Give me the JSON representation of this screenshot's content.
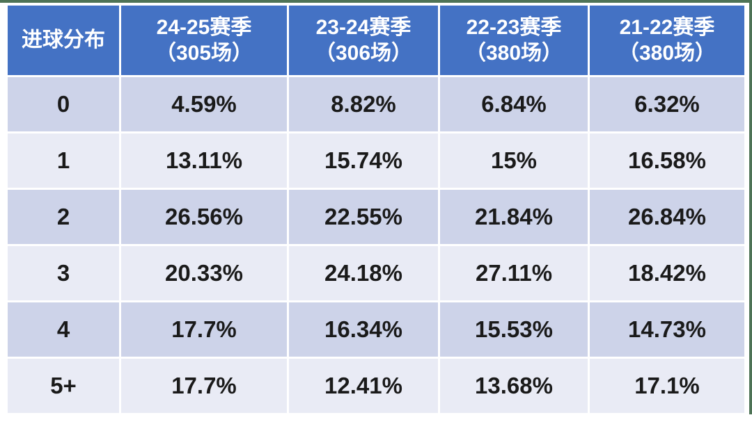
{
  "page": {
    "background": "#ffffff",
    "edge_strip_color": "#4e7356",
    "header_bg": "#4472c4",
    "header_text_color": "#ffffff",
    "row_bg_dark": "#cdd3e9",
    "row_bg_light": "#e9ebf5",
    "body_text_color": "#1a1a1a"
  },
  "table": {
    "columns": [
      {
        "label": "进球分布",
        "sublabel": ""
      },
      {
        "label": "24-25赛季",
        "sublabel": "（305场）"
      },
      {
        "label": "23-24赛季",
        "sublabel": "（306场）"
      },
      {
        "label": "22-23赛季",
        "sublabel": "（380场）"
      },
      {
        "label": "21-22赛季",
        "sublabel": "（380场）"
      }
    ],
    "rows": [
      {
        "goals": "0",
        "values": [
          "4.59%",
          "8.82%",
          "6.84%",
          "6.32%"
        ]
      },
      {
        "goals": "1",
        "values": [
          "13.11%",
          "15.74%",
          "15%",
          "16.58%"
        ]
      },
      {
        "goals": "2",
        "values": [
          "26.56%",
          "22.55%",
          "21.84%",
          "26.84%"
        ]
      },
      {
        "goals": "3",
        "values": [
          "20.33%",
          "24.18%",
          "27.11%",
          "18.42%"
        ]
      },
      {
        "goals": "4",
        "values": [
          "17.7%",
          "16.34%",
          "15.53%",
          "14.73%"
        ]
      },
      {
        "goals": "5+",
        "values": [
          "17.7%",
          "12.41%",
          "13.68%",
          "17.1%"
        ]
      }
    ]
  },
  "chart_data": {
    "type": "table",
    "title": "进球分布",
    "columns": [
      "进球分布",
      "24-25赛季（305场）",
      "23-24赛季（306场）",
      "22-23赛季（380场）",
      "21-22赛季（380场）"
    ],
    "categories": [
      "0",
      "1",
      "2",
      "3",
      "4",
      "5+"
    ],
    "series": [
      {
        "name": "24-25赛季",
        "matches": 305,
        "values_pct": [
          4.59,
          13.11,
          26.56,
          20.33,
          17.7,
          17.7
        ]
      },
      {
        "name": "23-24赛季",
        "matches": 306,
        "values_pct": [
          8.82,
          15.74,
          22.55,
          24.18,
          16.34,
          12.41
        ]
      },
      {
        "name": "22-23赛季",
        "matches": 380,
        "values_pct": [
          6.84,
          15.0,
          21.84,
          27.11,
          15.53,
          13.68
        ]
      },
      {
        "name": "21-22赛季",
        "matches": 380,
        "values_pct": [
          6.32,
          16.58,
          26.84,
          18.42,
          14.73,
          17.1
        ]
      }
    ]
  }
}
